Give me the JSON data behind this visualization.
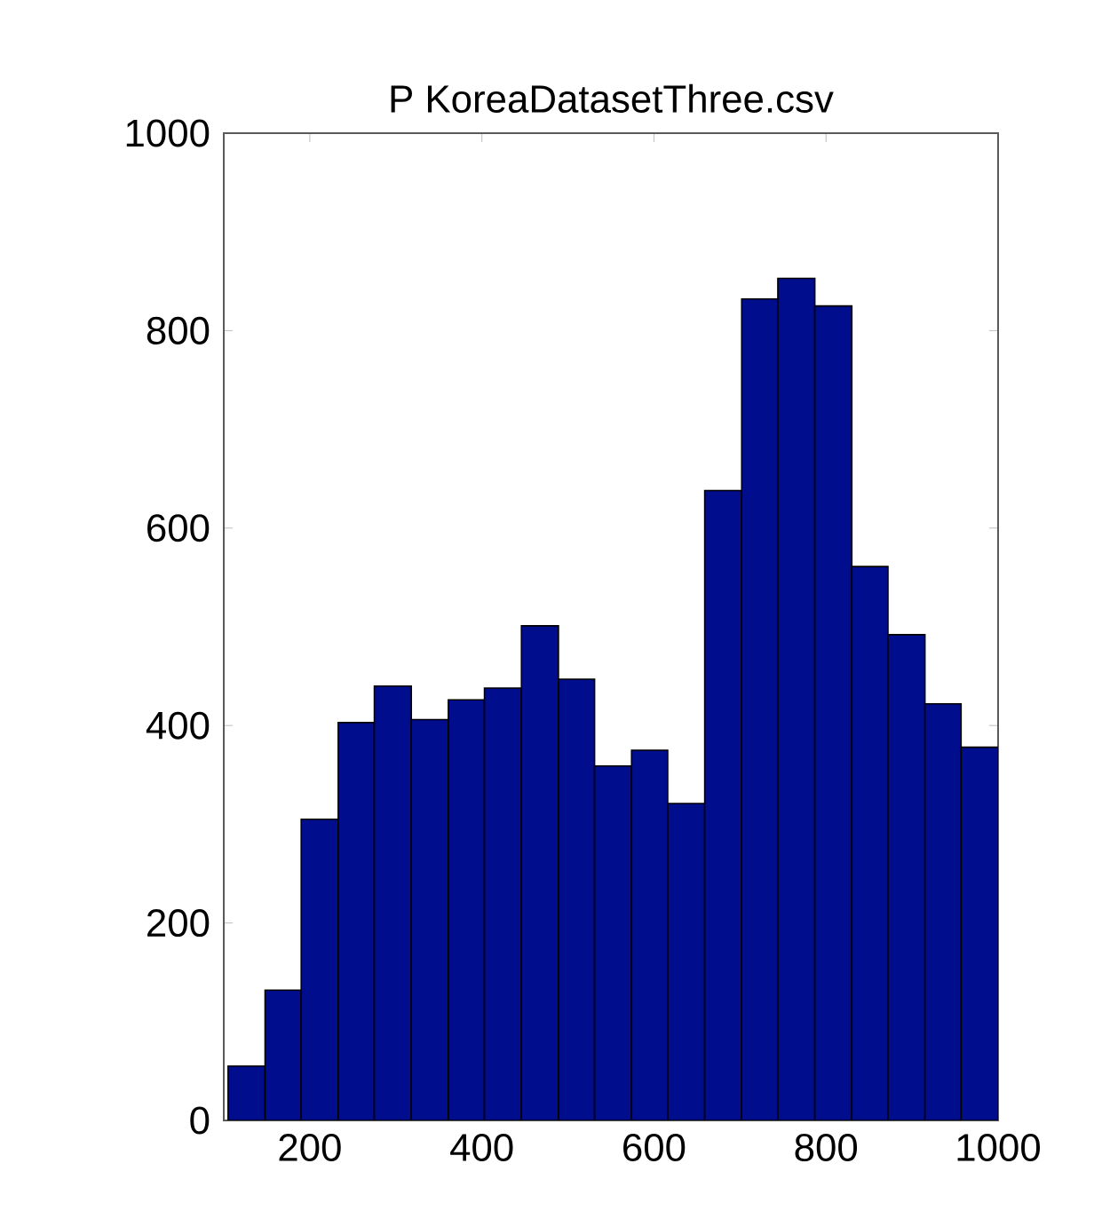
{
  "chart_data": {
    "type": "histogram",
    "title": "P KoreaDatasetThree.csv",
    "bins": [
      105,
      148,
      190,
      233,
      275,
      318,
      361,
      403,
      446,
      489,
      531,
      574,
      616,
      659,
      702,
      744,
      787,
      830,
      872,
      915,
      957,
      1000
    ],
    "values": [
      55,
      132,
      305,
      403,
      440,
      406,
      426,
      438,
      501,
      447,
      359,
      375,
      321,
      638,
      832,
      853,
      825,
      561,
      492,
      422,
      378
    ],
    "color": "#000d8c",
    "xlim": [
      100,
      1000
    ],
    "xticks": [
      200,
      400,
      600,
      800,
      1000
    ],
    "ylim": [
      0,
      1000
    ],
    "yticks": [
      0,
      200,
      400,
      600,
      800,
      1000
    ],
    "grid": false
  }
}
